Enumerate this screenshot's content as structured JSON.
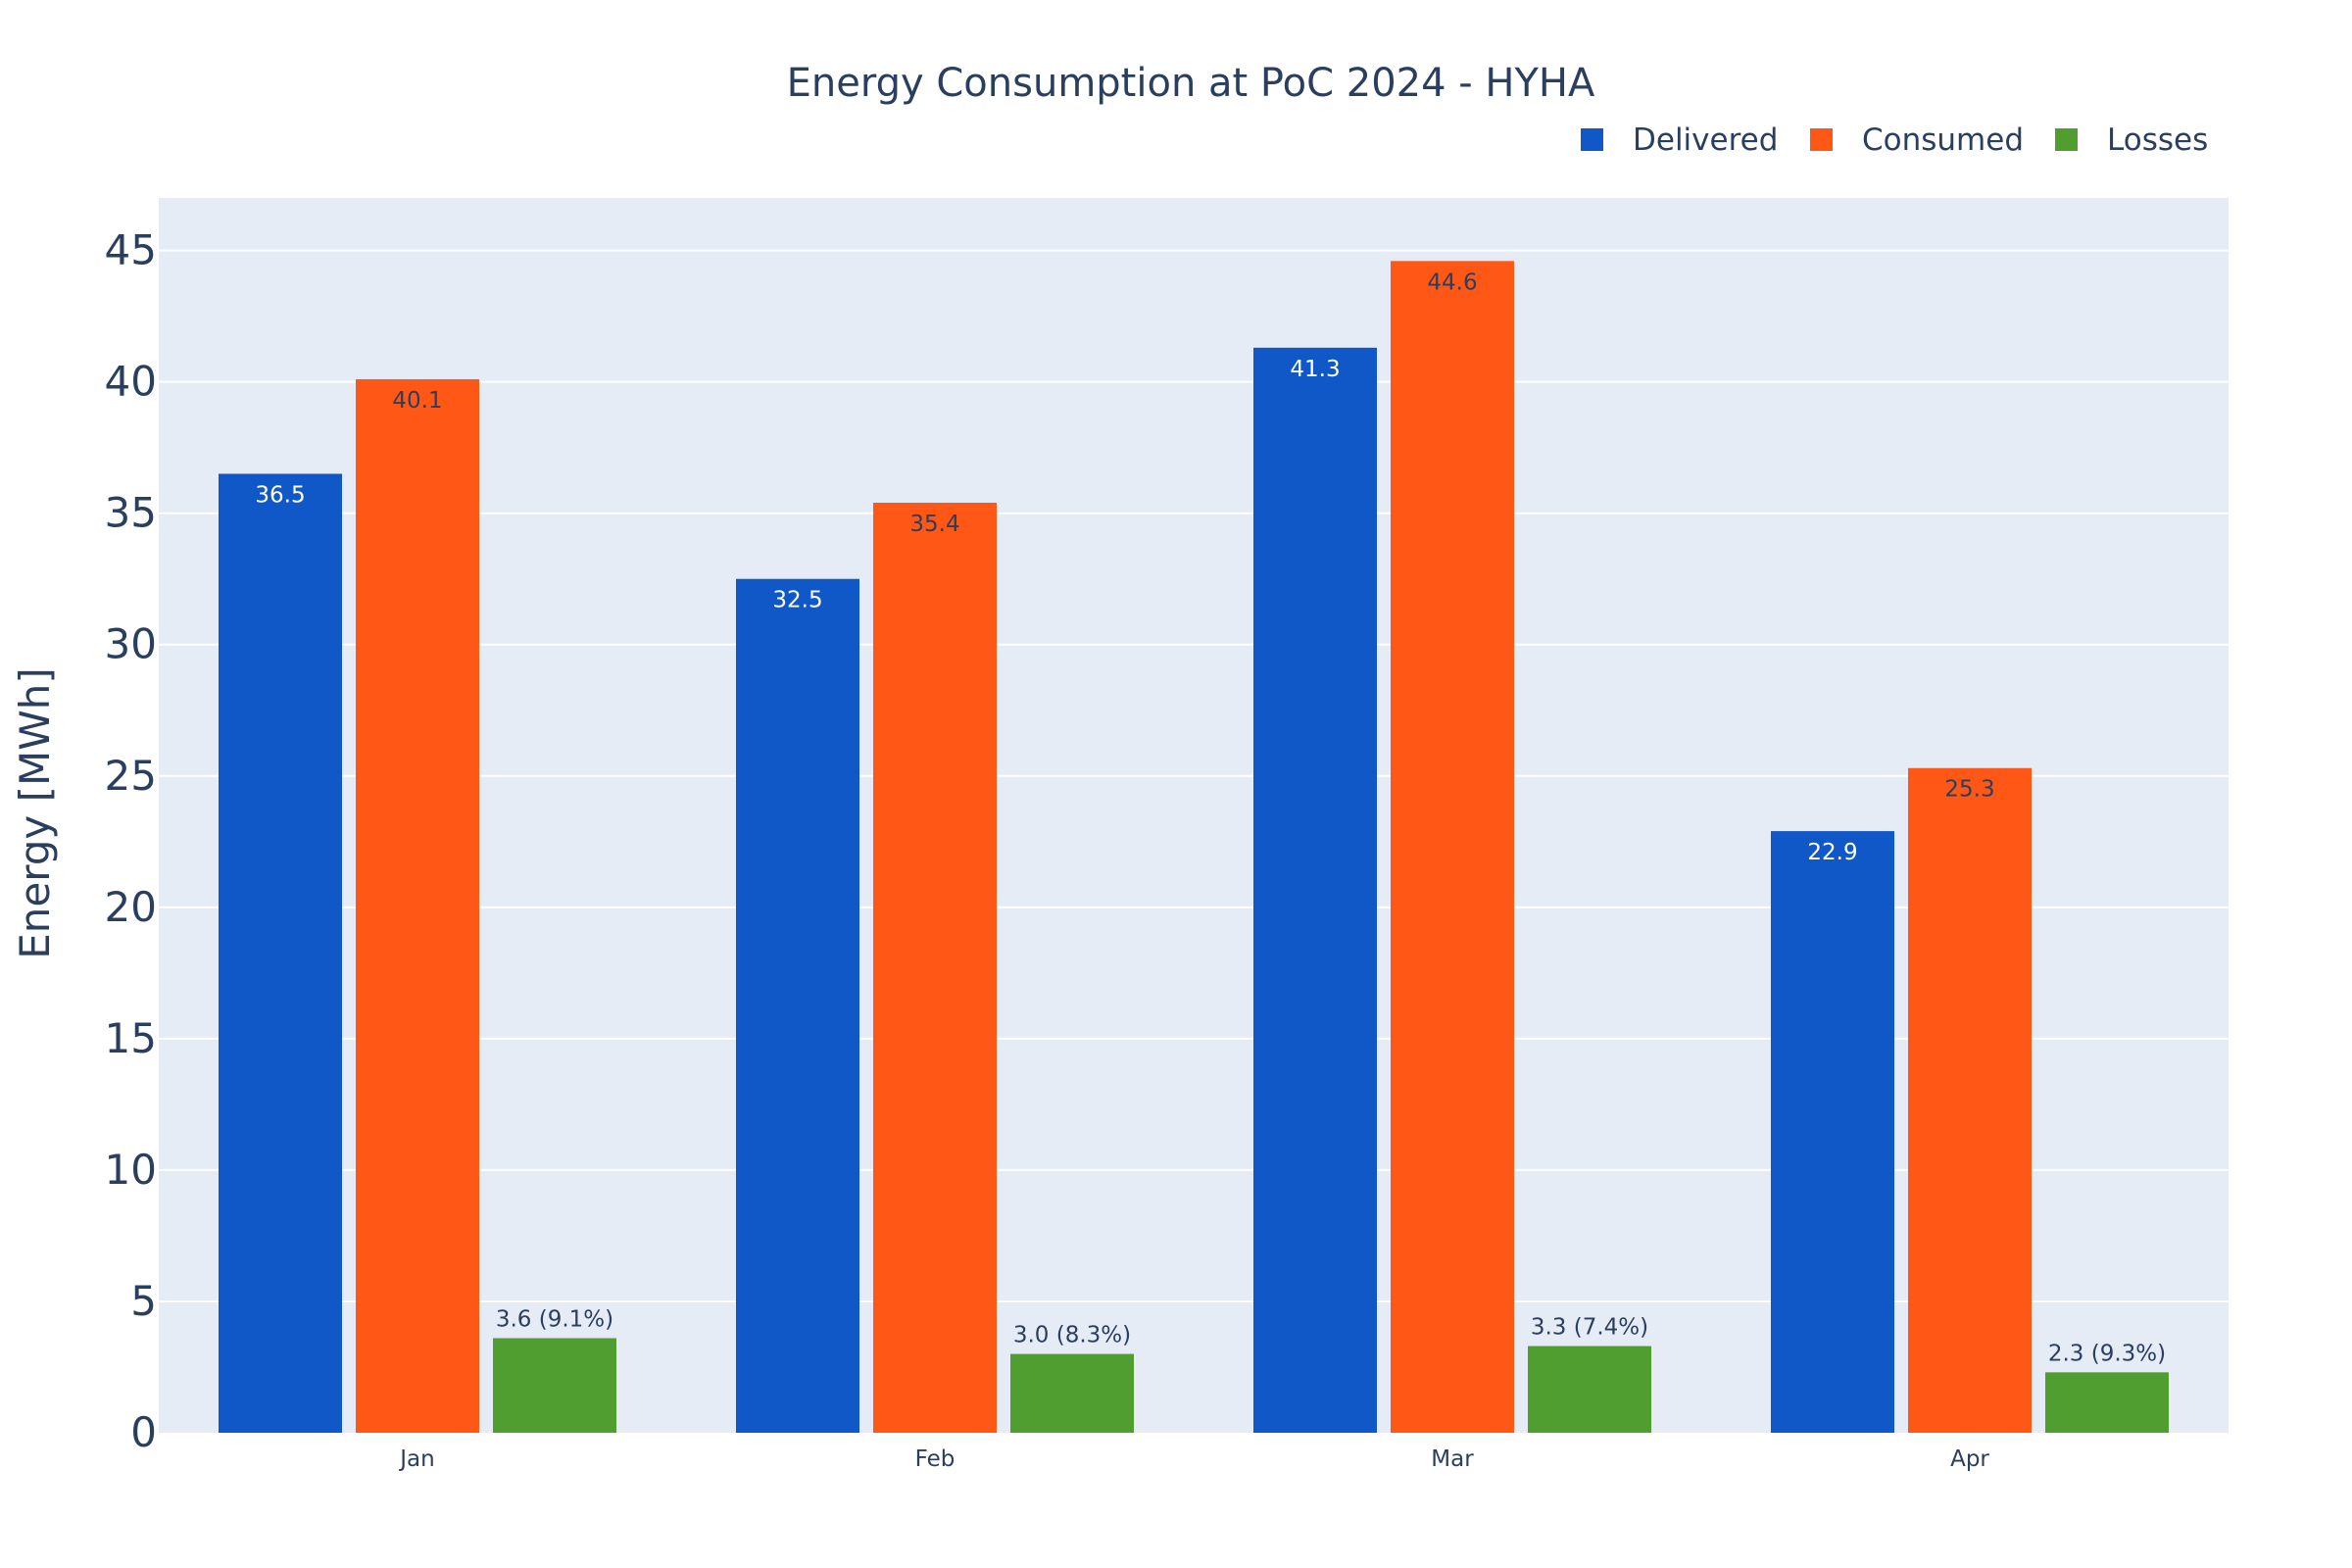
{
  "chart_data": {
    "type": "bar",
    "title": "Energy Consumption at PoC 2024 - HYHA",
    "xlabel": "",
    "ylabel": "Energy [MWh]",
    "ylim": [
      0,
      47
    ],
    "yticks": [
      0,
      5,
      10,
      15,
      20,
      25,
      30,
      35,
      40,
      45
    ],
    "grid": true,
    "legend_position": "top-right",
    "categories": [
      "Jan",
      "Feb",
      "Mar",
      "Apr"
    ],
    "series": [
      {
        "name": "Delivered",
        "color": "#1058c7",
        "label_color": "#ffffff",
        "label_position": "inside",
        "values": [
          36.5,
          32.5,
          41.3,
          22.9
        ],
        "labels": [
          "36.5",
          "32.5",
          "41.3",
          "22.9"
        ]
      },
      {
        "name": "Consumed",
        "color": "#fe5716",
        "label_color": "#2a3f5f",
        "label_position": "inside",
        "values": [
          40.1,
          35.4,
          44.6,
          25.3
        ],
        "labels": [
          "40.1",
          "35.4",
          "44.6",
          "25.3"
        ]
      },
      {
        "name": "Losses",
        "color": "#509e2f",
        "label_color": "#2a3f5f",
        "label_position": "outside",
        "values": [
          3.6,
          3.0,
          3.3,
          2.3
        ],
        "labels": [
          "3.6 (9.1%)",
          "3.0 (8.3%)",
          "3.3 (7.4%)",
          "2.3 (9.3%)"
        ]
      }
    ],
    "plot_background": "#e5ecf6",
    "grid_color": "#ffffff"
  }
}
